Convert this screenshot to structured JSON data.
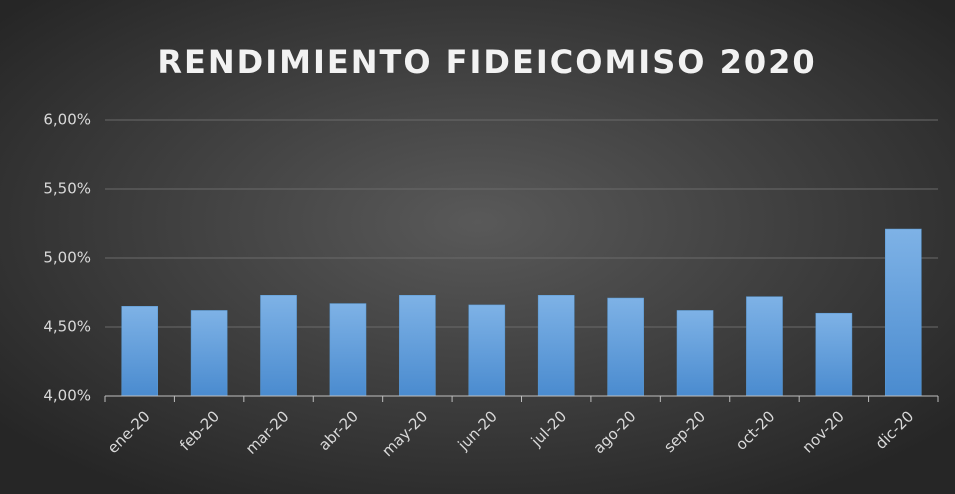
{
  "chart_data": {
    "type": "bar",
    "title": "RENDIMIENTO FIDEICOMISO 2020",
    "categories": [
      "ene-20",
      "feb-20",
      "mar-20",
      "abr-20",
      "may-20",
      "jun-20",
      "jul-20",
      "ago-20",
      "sep-20",
      "oct-20",
      "nov-20",
      "dic-20"
    ],
    "values": [
      4.65,
      4.62,
      4.73,
      4.67,
      4.73,
      4.66,
      4.73,
      4.71,
      4.62,
      4.72,
      4.6,
      5.21
    ],
    "color": "#5b9bd5",
    "ylim": [
      4,
      6
    ],
    "yticks": [
      {
        "value": 4,
        "label": "4,00%"
      },
      {
        "value": 4.5,
        "label": "4,50%"
      },
      {
        "value": 5,
        "label": "5,00%"
      },
      {
        "value": 5.5,
        "label": "5,50%"
      },
      {
        "value": 6,
        "label": "6,00%"
      }
    ],
    "grid": true
  }
}
